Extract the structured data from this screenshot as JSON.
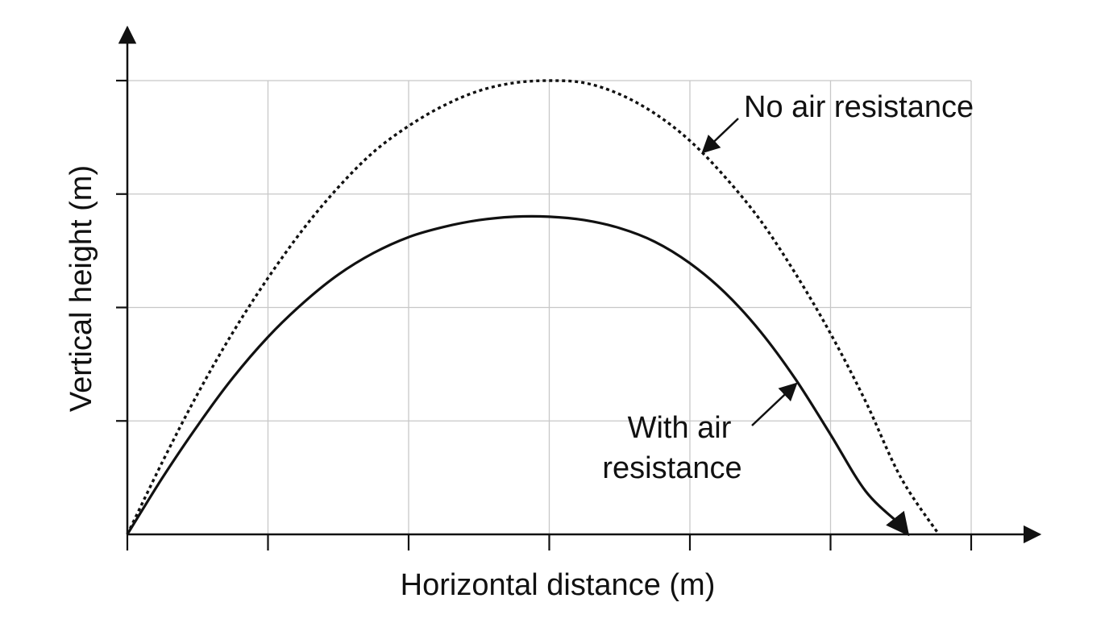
{
  "chart_data": {
    "type": "line",
    "title": "",
    "xlabel": "Horizontal distance (m)",
    "ylabel": "Vertical height (m)",
    "xlim": [
      0,
      6
    ],
    "ylim": [
      0,
      4
    ],
    "grid": true,
    "ticks_labeled": false,
    "series": [
      {
        "name": "No air resistance",
        "style": "dotted",
        "x": [
          0,
          0.25,
          0.5,
          0.75,
          1.0,
          1.25,
          1.5,
          1.75,
          2.0,
          2.25,
          2.5,
          2.75,
          3.0,
          3.25,
          3.5,
          3.75,
          4.0,
          4.25,
          4.5,
          4.75,
          5.0,
          5.25,
          5.5,
          5.77
        ],
        "y": [
          0,
          0.64,
          1.24,
          1.78,
          2.26,
          2.69,
          3.06,
          3.37,
          3.6,
          3.78,
          3.91,
          3.98,
          4.0,
          3.98,
          3.88,
          3.71,
          3.47,
          3.15,
          2.77,
          2.3,
          1.77,
          1.17,
          0.5,
          0
        ]
      },
      {
        "name": "With air resistance",
        "style": "solid",
        "x": [
          0,
          0.25,
          0.5,
          0.75,
          1.0,
          1.25,
          1.5,
          1.75,
          2.0,
          2.25,
          2.5,
          2.75,
          3.0,
          3.25,
          3.5,
          3.75,
          4.0,
          4.25,
          4.5,
          4.75,
          5.0,
          5.25,
          5.5,
          5.55
        ],
        "y": [
          0,
          0.5,
          0.96,
          1.38,
          1.74,
          2.04,
          2.29,
          2.48,
          2.62,
          2.71,
          2.77,
          2.8,
          2.8,
          2.77,
          2.7,
          2.58,
          2.39,
          2.13,
          1.79,
          1.37,
          0.88,
          0.38,
          0.08,
          0
        ]
      }
    ],
    "annotations": [
      {
        "text": "No air resistance",
        "points_to_series": "No air resistance"
      },
      {
        "text": "With air resistance",
        "lines": [
          "With air",
          "resistance"
        ],
        "points_to_series": "With air resistance"
      }
    ],
    "colors": {
      "curve": "#111111",
      "grid": "#c8c8c8",
      "axis": "#111111"
    }
  }
}
